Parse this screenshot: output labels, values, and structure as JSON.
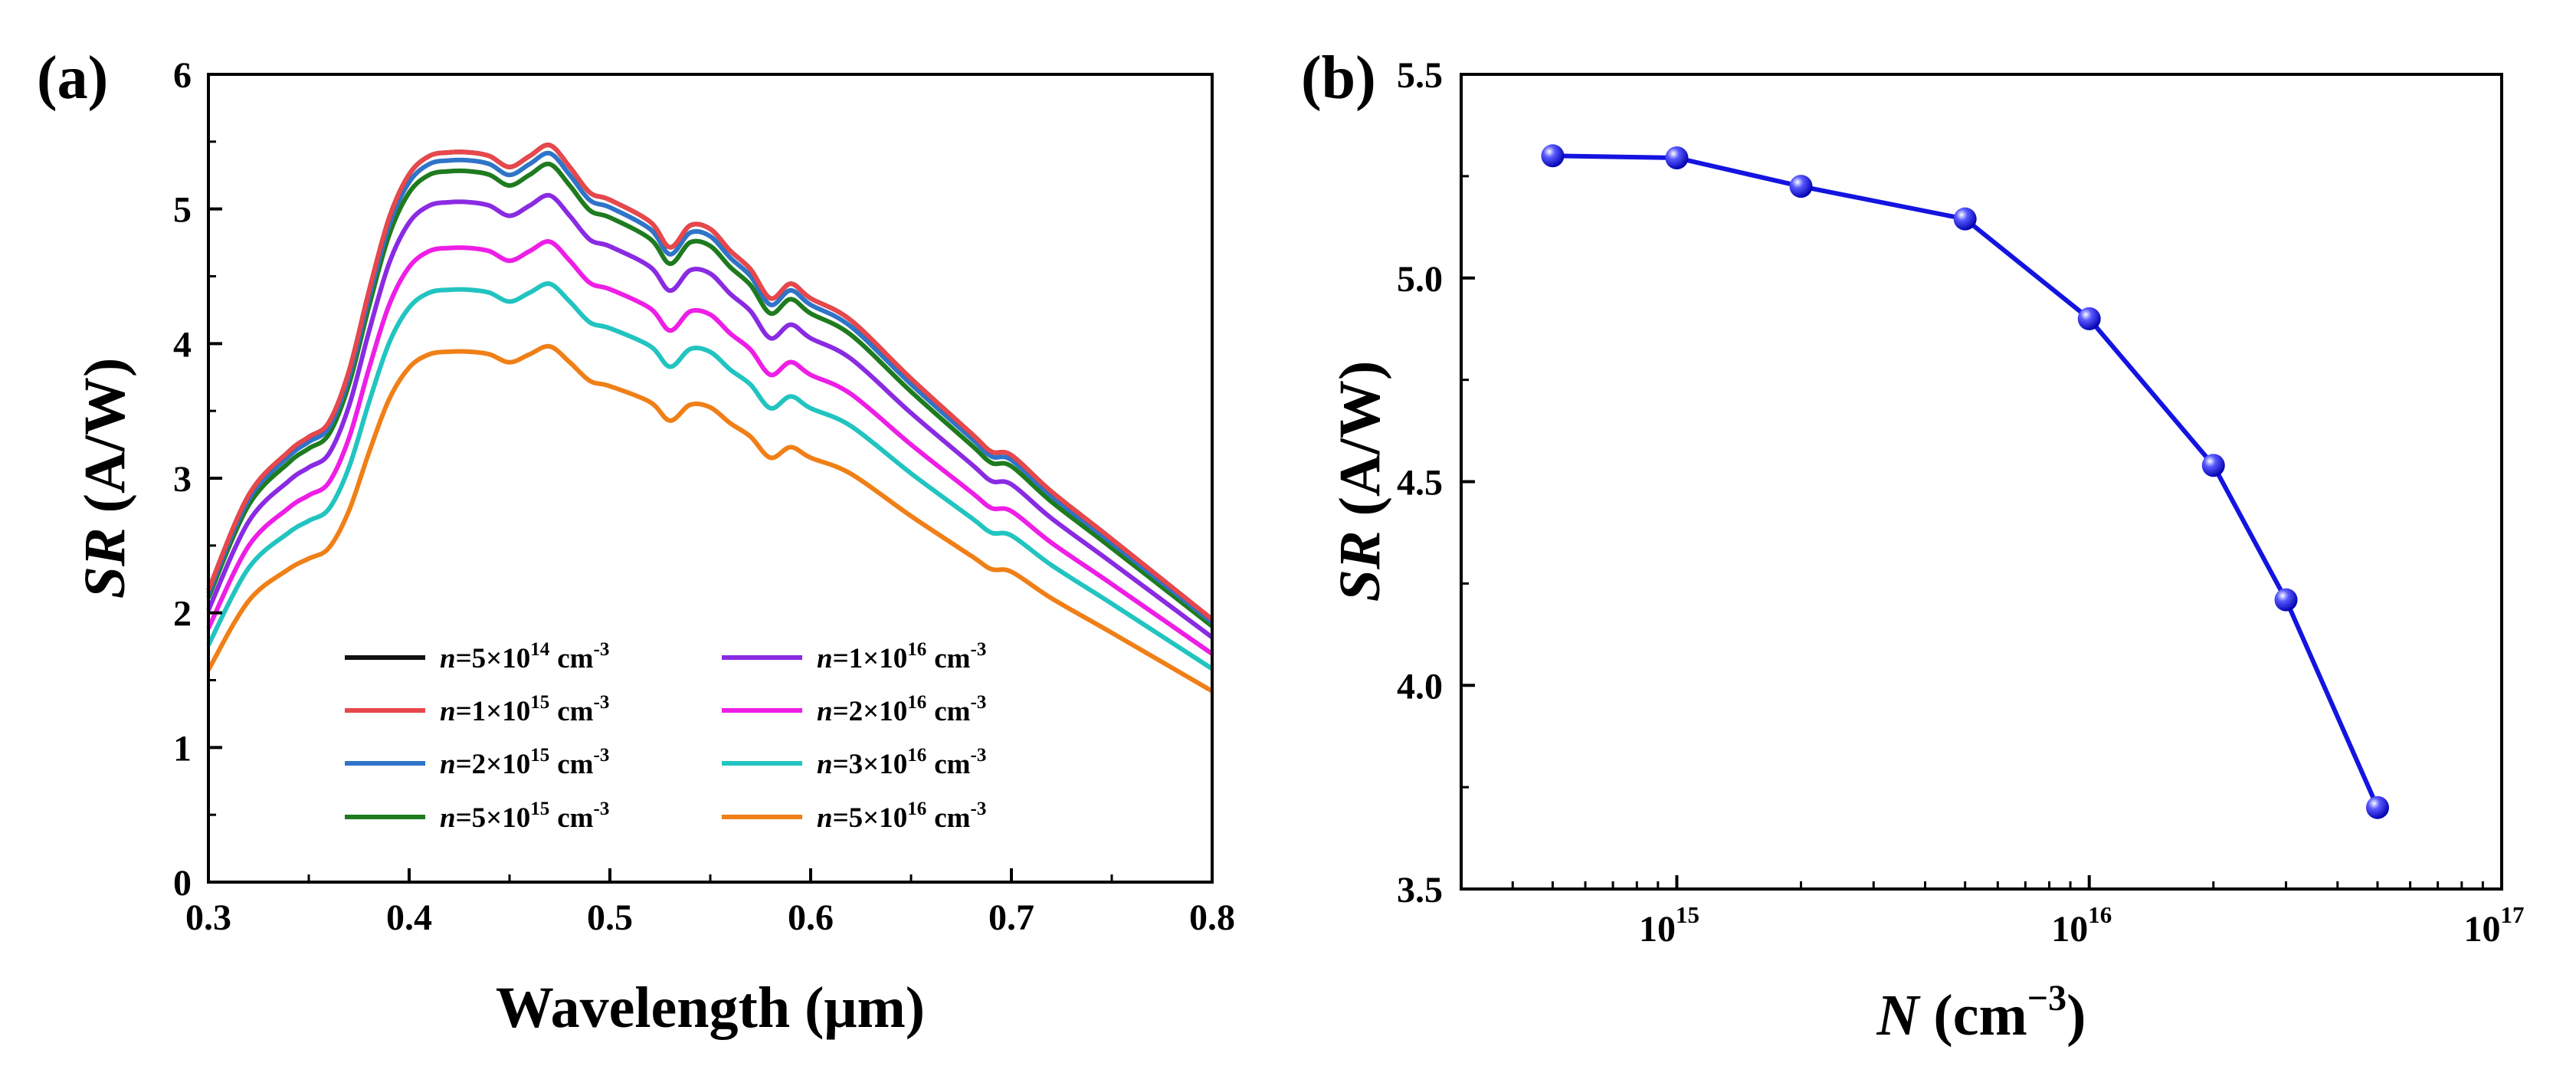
{
  "chart_data": [
    {
      "panel": "(a)",
      "type": "line",
      "xlabel": "Wavelength (μm)",
      "ylabel": "SR (A/W)",
      "xlim": [
        0.3,
        0.8
      ],
      "ylim": [
        0,
        6
      ],
      "xticks": [
        0.3,
        0.4,
        0.5,
        0.6,
        0.7,
        0.8
      ],
      "yticks": [
        0,
        1,
        2,
        3,
        4,
        5,
        6
      ],
      "xtick_labels": [
        "0.3",
        "0.4",
        "0.5",
        "0.6",
        "0.7",
        "0.8"
      ],
      "ytick_labels": [
        "0",
        "1",
        "2",
        "3",
        "4",
        "5",
        "6"
      ],
      "grid": false,
      "legend_position": "bottom-center",
      "shape_x": [
        0.3,
        0.32,
        0.34,
        0.35,
        0.36,
        0.37,
        0.38,
        0.39,
        0.4,
        0.41,
        0.42,
        0.43,
        0.44,
        0.45,
        0.46,
        0.47,
        0.48,
        0.49,
        0.5,
        0.52,
        0.53,
        0.54,
        0.55,
        0.56,
        0.57,
        0.58,
        0.59,
        0.6,
        0.62,
        0.65,
        0.68,
        0.69,
        0.7,
        0.72,
        0.75,
        0.8
      ],
      "shape": [
        0.4,
        0.53,
        0.59,
        0.61,
        0.63,
        0.7,
        0.81,
        0.91,
        0.97,
        0.995,
        1.0,
        1.0,
        0.995,
        0.98,
        0.995,
        1.01,
        0.98,
        0.945,
        0.935,
        0.905,
        0.87,
        0.9,
        0.895,
        0.865,
        0.84,
        0.8,
        0.82,
        0.8,
        0.77,
        0.69,
        0.615,
        0.59,
        0.585,
        0.535,
        0.47,
        0.36
      ],
      "series": [
        {
          "name": "n=5×10^14 cm^-3",
          "label_value": "=5×10",
          "label_exp": "14",
          "peak": 5.42,
          "color": "#111111"
        },
        {
          "name": "n=1×10^15 cm^-3",
          "label_value": "=1×10",
          "label_exp": "15",
          "peak": 5.42,
          "color": "#e8474c"
        },
        {
          "name": "n=2×10^15 cm^-3",
          "label_value": "=2×10",
          "label_exp": "15",
          "peak": 5.36,
          "color": "#2f74c8"
        },
        {
          "name": "n=5×10^15 cm^-3",
          "label_value": "=5×10",
          "label_exp": "15",
          "peak": 5.28,
          "color": "#1e7b1e"
        },
        {
          "name": "n=1×10^16 cm^-3",
          "label_value": "=1×10",
          "label_exp": "16",
          "peak": 5.05,
          "color": "#8a2be2"
        },
        {
          "name": "n=2×10^16 cm^-3",
          "label_value": "=2×10",
          "label_exp": "16",
          "peak": 4.71,
          "color": "#ee1ee6"
        },
        {
          "name": "n=3×10^16 cm^-3",
          "label_value": "=3×10",
          "label_exp": "16",
          "peak": 4.4,
          "color": "#22c4c0"
        },
        {
          "name": "n=5×10^16 cm^-3",
          "label_value": "=5×10",
          "label_exp": "16",
          "peak": 3.94,
          "color": "#f07f17"
        }
      ],
      "legend_prefix": "n",
      "legend_unit": "cm",
      "legend_unit_exp": "-3"
    },
    {
      "panel": "(b)",
      "type": "line",
      "xscale": "log",
      "xlabel_italic": "N",
      "xlabel_rest": "(cm",
      "xlabel_exp": "−3",
      "xlabel_close": ")",
      "ylabel": "SR (A/W)",
      "xlim": [
        300000000000000.0,
        1e+17
      ],
      "ylim": [
        3.5,
        5.5
      ],
      "yticks": [
        3.5,
        4.0,
        4.5,
        5.0,
        5.5
      ],
      "ytick_labels": [
        "3.5",
        "4.0",
        "4.5",
        "5.0",
        "5.5"
      ],
      "xticks": [
        {
          "value": 1000000000000000.0,
          "base": "10",
          "exp": "15"
        },
        {
          "value": 1e+16,
          "base": "10",
          "exp": "16"
        },
        {
          "value": 1e+17,
          "base": "10",
          "exp": "17"
        }
      ],
      "grid": false,
      "color": "#1414e0",
      "x": [
        500000000000000.0,
        1000000000000000.0,
        2000000000000000.0,
        5000000000000000.0,
        1e+16,
        2e+16,
        3e+16,
        5e+16
      ],
      "y": [
        5.3,
        5.295,
        5.225,
        5.145,
        4.9,
        4.54,
        4.21,
        3.7
      ]
    }
  ],
  "panel_labels": [
    "(a)",
    "(b)"
  ],
  "axis_titles": {
    "a_y_italic": "SR",
    "a_y_rest": "(A/W)",
    "a_x": "Wavelength (μm)",
    "b_y_italic": "SR",
    "b_y_rest": "(A/W)"
  }
}
